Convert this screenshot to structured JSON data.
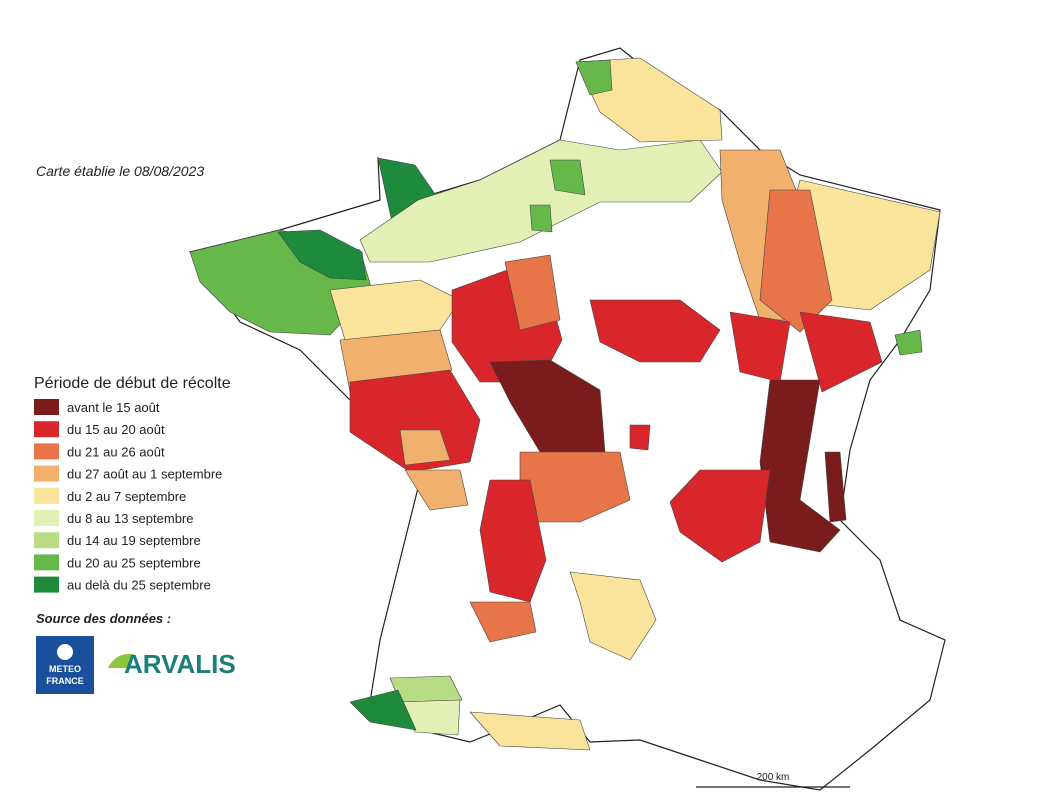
{
  "map_date": "Carte établie le 08/08/2023",
  "legend": {
    "title": "Période de début de récolte",
    "items": [
      {
        "label": "avant le 15 août",
        "color": "#7a1c1c"
      },
      {
        "label": "du 15 au 20 août",
        "color": "#d9262a"
      },
      {
        "label": "du 21 au 26 août",
        "color": "#e8744a"
      },
      {
        "label": "du 27 août au 1 septembre",
        "color": "#f2b06e"
      },
      {
        "label": "du 2 au 7 septembre",
        "color": "#fae39a"
      },
      {
        "label": "du 8 au 13 septembre",
        "color": "#e3f0b5"
      },
      {
        "label": "du 14 au 19 septembre",
        "color": "#b7dc84"
      },
      {
        "label": "du 20 au 25 septembre",
        "color": "#66b84a"
      },
      {
        "label": "au delà du 25 septembre",
        "color": "#1e8a3c"
      }
    ]
  },
  "source": {
    "title": "Source des données :",
    "meteo_line1": "METEO",
    "meteo_line2": "FRANCE",
    "arvalis": "ARVALIS"
  },
  "scale_bar": "200 km"
}
